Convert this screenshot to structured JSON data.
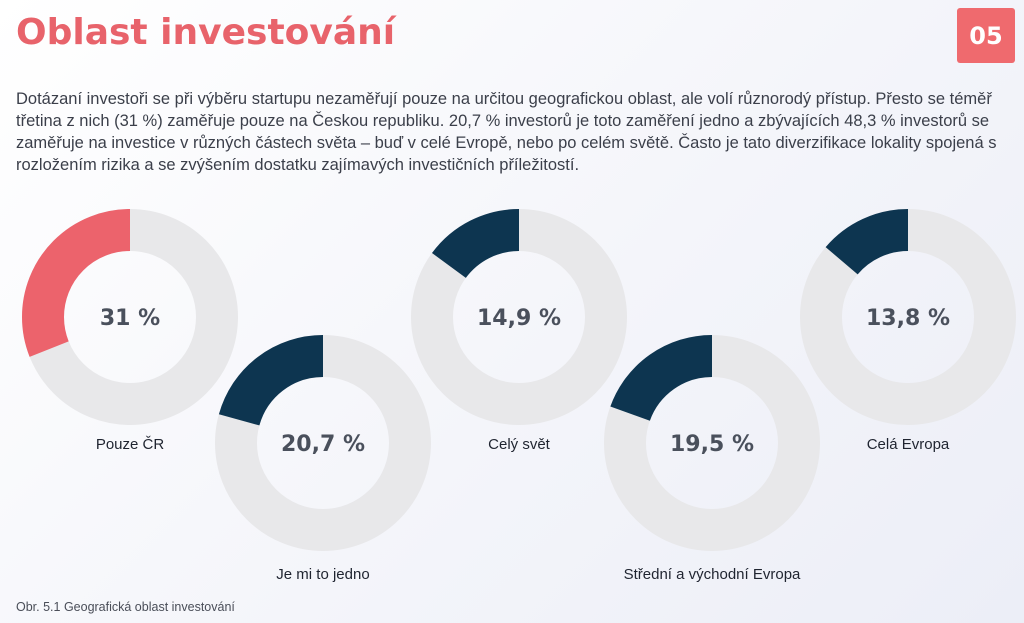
{
  "page": {
    "title": "Oblast investování",
    "badge": "05",
    "intro": "Dotázaní investoři se při výběru startupu nezaměřují pouze na určitou geografickou oblast, ale volí různorodý přístup. Přesto se téměř třetina z nich (31 %) zaměřuje pouze na Českou republiku. 20,7 % investorů je toto zaměření jedno a zbývajících 48,3 % investorů se zaměřuje na investice v různých částech světa – buď v celé Evropě, nebo po celém světě. Často je tato diverzifikace lokality spojená s rozložením rizika a se zvýšením dostatku zajímavých investičních příležitostí.",
    "caption": "Obr. 5.1 Geografická oblast investování"
  },
  "chart_data": {
    "type": "pie",
    "variant": "donut",
    "track_color": "#e8e8ea",
    "items": [
      {
        "label": "Pouze ČR",
        "value": 31,
        "value_label": "31 %",
        "color": "#ec636c"
      },
      {
        "label": "Je mi to jedno",
        "value": 20.7,
        "value_label": "20,7 %",
        "color": "#0d3550"
      },
      {
        "label": "Celý svět",
        "value": 14.9,
        "value_label": "14,9 %",
        "color": "#0d3550"
      },
      {
        "label": "Střední a východní Evropa",
        "value": 19.5,
        "value_label": "19,5 %",
        "color": "#0d3550"
      },
      {
        "label": "Celá Evropa",
        "value": 13.8,
        "value_label": "13,8 %",
        "color": "#0d3550"
      }
    ]
  }
}
